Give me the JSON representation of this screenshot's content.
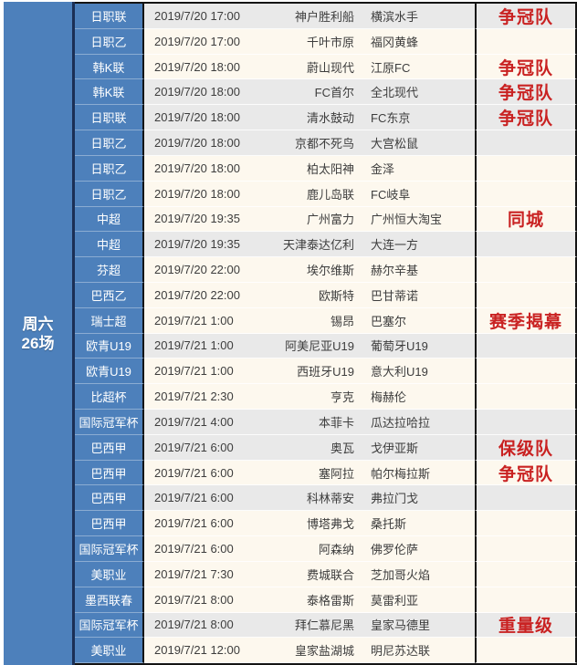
{
  "sidebar": {
    "day_label_line1": "周六",
    "day_label_line2": "26场"
  },
  "colors": {
    "league_blue": "#4d80bb",
    "divider_navy": "#1b2f55",
    "border_black": "#141414",
    "note_red": "#c92222",
    "bands": {
      "gray": "#e9e9e9",
      "cream": "#fdf8ee"
    }
  },
  "table": {
    "columns": [
      "league",
      "datetime",
      "home",
      "away",
      "note"
    ],
    "rows": [
      {
        "league": "日职联",
        "datetime": "2019/7/20 17:00",
        "home": "神户胜利船",
        "away": "横滨水手",
        "note": "争冠队",
        "band": "gray"
      },
      {
        "league": "日职乙",
        "datetime": "2019/7/20 17:00",
        "home": "千叶市原",
        "away": "福冈黄蜂",
        "note": "",
        "band": "cream"
      },
      {
        "league": "韩K联",
        "datetime": "2019/7/20 18:00",
        "home": "蔚山现代",
        "away": "江原FC",
        "note": "争冠队",
        "band": "cream"
      },
      {
        "league": "韩K联",
        "datetime": "2019/7/20 18:00",
        "home": "FC首尔",
        "away": "全北现代",
        "note": "争冠队",
        "band": "gray"
      },
      {
        "league": "日职联",
        "datetime": "2019/7/20 18:00",
        "home": "清水鼓动",
        "away": "FC东京",
        "note": "争冠队",
        "band": "gray"
      },
      {
        "league": "日职乙",
        "datetime": "2019/7/20 18:00",
        "home": "京都不死鸟",
        "away": "大宫松鼠",
        "note": "",
        "band": "gray"
      },
      {
        "league": "日职乙",
        "datetime": "2019/7/20 18:00",
        "home": "柏太阳神",
        "away": "金泽",
        "note": "",
        "band": "cream"
      },
      {
        "league": "日职乙",
        "datetime": "2019/7/20 18:00",
        "home": "鹿儿岛联",
        "away": "FC岐阜",
        "note": "",
        "band": "cream"
      },
      {
        "league": "中超",
        "datetime": "2019/7/20 19:35",
        "home": "广州富力",
        "away": "广州恒大淘宝",
        "note": "同城",
        "band": "cream"
      },
      {
        "league": "中超",
        "datetime": "2019/7/20 19:35",
        "home": "天津泰达亿利",
        "away": "大连一方",
        "note": "",
        "band": "gray"
      },
      {
        "league": "芬超",
        "datetime": "2019/7/20 22:00",
        "home": "埃尔维斯",
        "away": "赫尔辛基",
        "note": "",
        "band": "cream"
      },
      {
        "league": "巴西乙",
        "datetime": "2019/7/20 22:00",
        "home": "欧斯特",
        "away": "巴甘蒂诺",
        "note": "",
        "band": "cream"
      },
      {
        "league": "瑞士超",
        "datetime": "2019/7/21 1:00",
        "home": "锡昂",
        "away": "巴塞尔",
        "note": "赛季揭幕",
        "band": "cream"
      },
      {
        "league": "欧青U19",
        "datetime": "2019/7/21 1:00",
        "home": "阿美尼亚U19",
        "away": "葡萄牙U19",
        "note": "",
        "band": "gray"
      },
      {
        "league": "欧青U19",
        "datetime": "2019/7/21 1:00",
        "home": "西班牙U19",
        "away": "意大利U19",
        "note": "",
        "band": "cream"
      },
      {
        "league": "比超杯",
        "datetime": "2019/7/21 2:30",
        "home": "亨克",
        "away": "梅赫伦",
        "note": "",
        "band": "cream"
      },
      {
        "league": "国际冠军杯",
        "datetime": "2019/7/21 4:00",
        "home": "本菲卡",
        "away": "瓜达拉哈拉",
        "note": "",
        "band": "gray"
      },
      {
        "league": "巴西甲",
        "datetime": "2019/7/21 6:00",
        "home": "奥瓦",
        "away": "戈伊亚斯",
        "note": "保级队",
        "band": "gray"
      },
      {
        "league": "巴西甲",
        "datetime": "2019/7/21 6:00",
        "home": "塞阿拉",
        "away": "帕尔梅拉斯",
        "note": "争冠队",
        "band": "cream"
      },
      {
        "league": "巴西甲",
        "datetime": "2019/7/21 6:00",
        "home": "科林蒂安",
        "away": "弗拉门戈",
        "note": "",
        "band": "gray"
      },
      {
        "league": "巴西甲",
        "datetime": "2019/7/21 6:00",
        "home": "博塔弗戈",
        "away": "桑托斯",
        "note": "",
        "band": "cream"
      },
      {
        "league": "国际冠军杯",
        "datetime": "2019/7/21 6:00",
        "home": "阿森纳",
        "away": "佛罗伦萨",
        "note": "",
        "band": "cream"
      },
      {
        "league": "美职业",
        "datetime": "2019/7/21 7:30",
        "home": "费城联合",
        "away": "芝加哥火焰",
        "note": "",
        "band": "cream"
      },
      {
        "league": "墨西联春",
        "datetime": "2019/7/21 8:00",
        "home": "泰格雷斯",
        "away": "莫雷利亚",
        "note": "",
        "band": "cream"
      },
      {
        "league": "国际冠军杯",
        "datetime": "2019/7/21 8:00",
        "home": "拜仁慕尼黑",
        "away": "皇家马德里",
        "note": "重量级",
        "band": "gray"
      },
      {
        "league": "美职业",
        "datetime": "2019/7/21 12:00",
        "home": "皇家盐湖城",
        "away": "明尼苏达联",
        "note": "",
        "band": "cream"
      }
    ]
  }
}
